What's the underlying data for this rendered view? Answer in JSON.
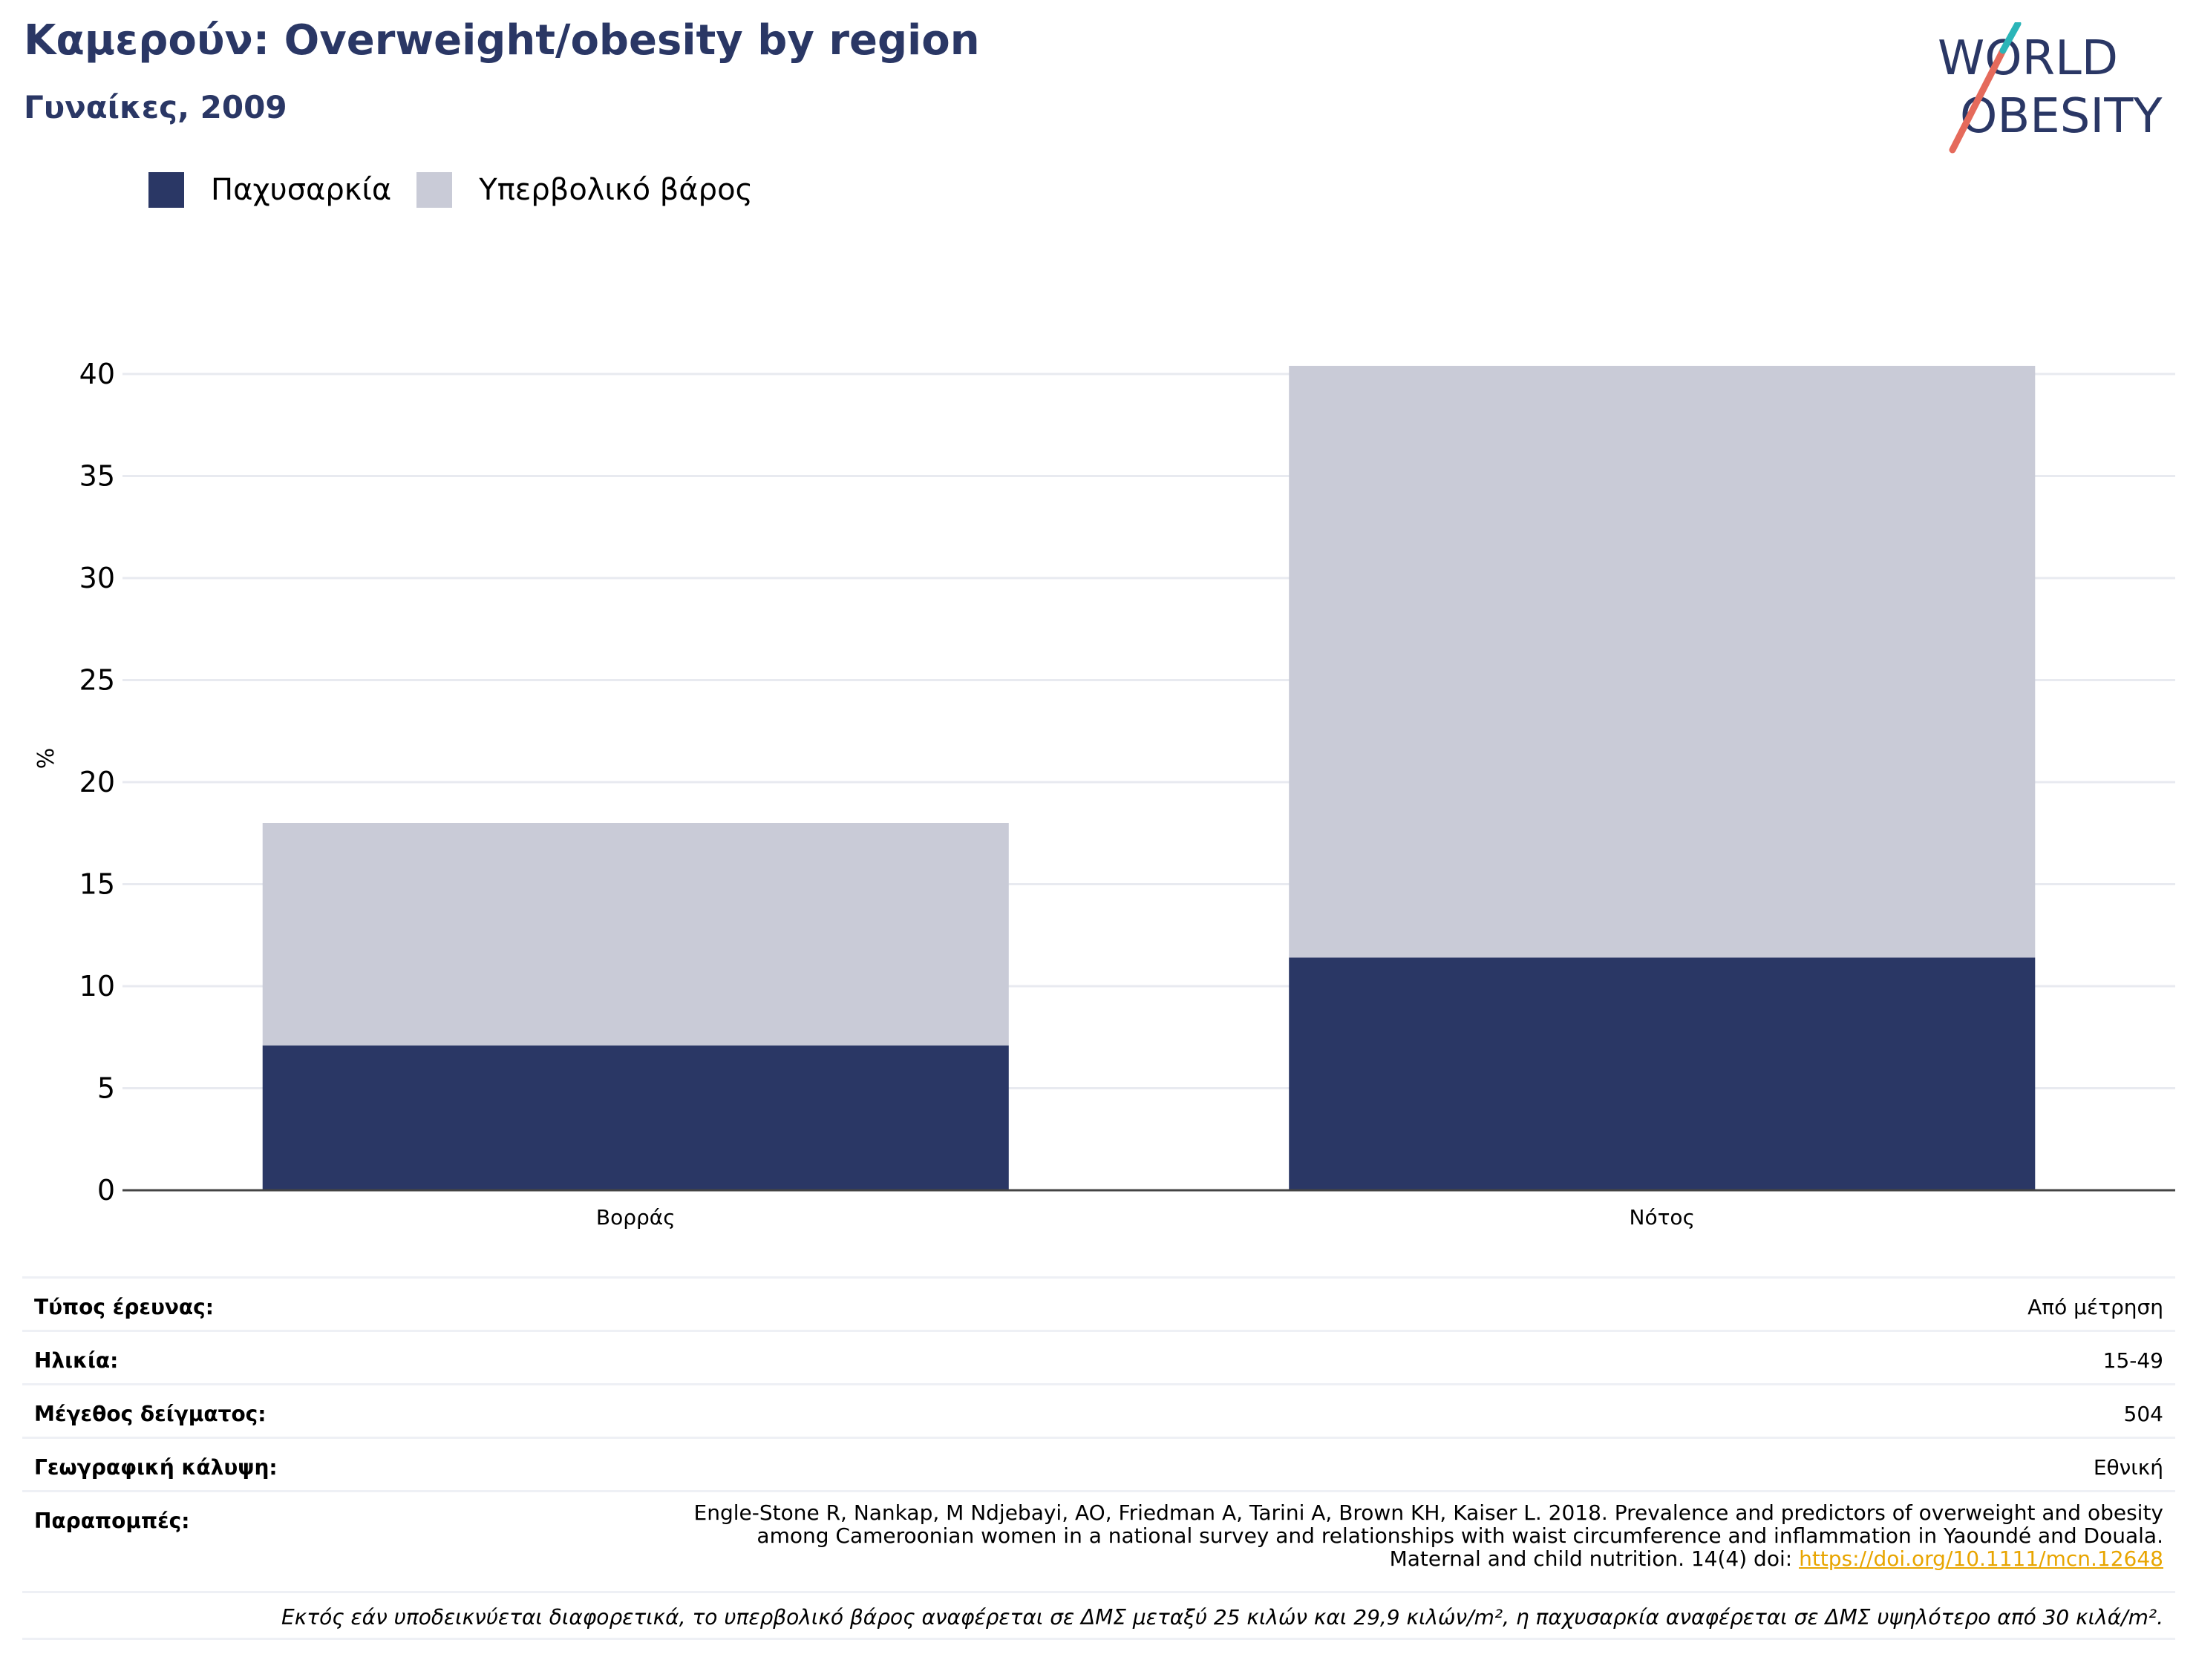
{
  "header": {
    "title": "Καμερούν: Overweight/obesity by region",
    "subtitle": "Γυναίκες, 2009"
  },
  "logo": {
    "line1": "WORLD",
    "line2": "OBESITY"
  },
  "colors": {
    "obesity": "#2a3765",
    "overweight": "#c9cbd7",
    "accent_red": "#e56a5b",
    "accent_teal": "#2bb5b8"
  },
  "chart_data": {
    "type": "bar",
    "stacked": true,
    "categories": [
      "Βορράς",
      "Νότος"
    ],
    "series": [
      {
        "name": "Παχυσαρκία",
        "values": [
          7.1,
          11.4
        ],
        "color": "#2a3765"
      },
      {
        "name": "Υπερβολικό βάρος",
        "values": [
          10.9,
          29.0
        ],
        "color": "#c9cbd7"
      }
    ],
    "ylabel": "%",
    "ylim": [
      0,
      42
    ],
    "yticks": [
      0,
      5,
      10,
      15,
      20,
      25,
      30,
      35,
      40
    ],
    "grid": true,
    "legend": "top-left"
  },
  "info": {
    "rows": [
      {
        "label": "Τύπος έρευνας:",
        "value": "Από μέτρηση"
      },
      {
        "label": "Ηλικία:",
        "value": "15-49"
      },
      {
        "label": "Μέγεθος δείγματος:",
        "value": "504"
      },
      {
        "label": "Γεωγραφική κάλυψη:",
        "value": "Εθνική"
      }
    ],
    "references_label": "Παραπομπές:",
    "references_line1": "Engle-Stone R, Nankap, M Ndjebayi, AO, Friedman A, Tarini A, Brown KH, Kaiser L. 2018. Prevalence and predictors of overweight and obesity",
    "references_line2": "among Cameroonian women in a national survey and relationships with waist circumference and inflammation in Yaoundé and Douala.",
    "references_line3": "Maternal and child nutrition. 14(4) doi: ",
    "references_link": "https://doi.org/10.1111/mcn.12648",
    "note": "Εκτός εάν υποδεικνύεται διαφορετικά, το υπερβολικό βάρος αναφέρεται σε ΔΜΣ μεταξύ 25 κιλών και 29,9 κιλών/m², η παχυσαρκία αναφέρεται σε ΔΜΣ υψηλότερο από 30 κιλά/m²."
  }
}
